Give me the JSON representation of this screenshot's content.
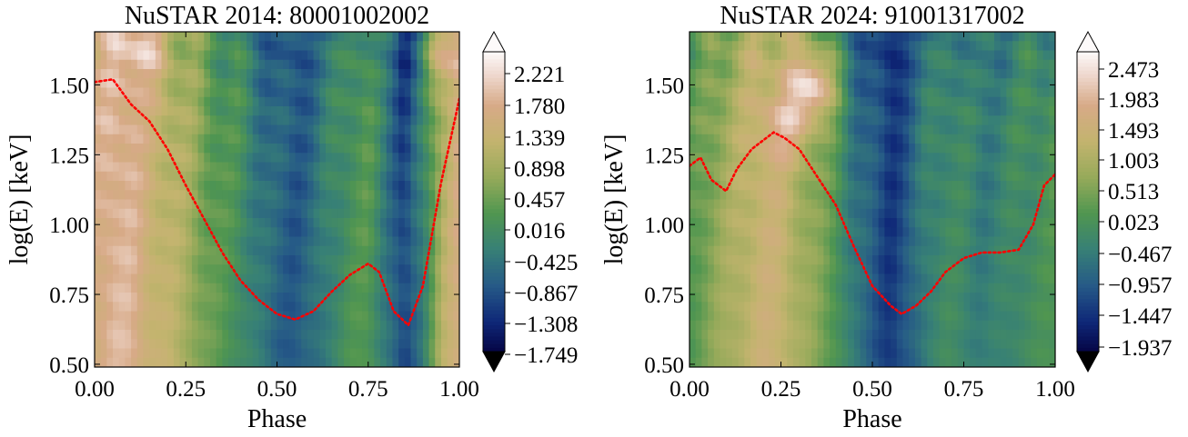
{
  "chart_data": [
    {
      "type": "heatmap",
      "title": "NuSTAR 2014: 80001002002",
      "xlabel": "Phase",
      "ylabel": "log(E) [keV]",
      "xlim": [
        0.0,
        1.0
      ],
      "ylim": [
        0.49,
        1.69
      ],
      "xticks": [
        "0.00",
        "0.25",
        "0.50",
        "0.75",
        "1.00"
      ],
      "yticks": [
        "0.50",
        "0.75",
        "1.00",
        "1.25",
        "1.50"
      ],
      "colormap": "gist_earth",
      "color_range": [
        -1.749,
        2.5
      ],
      "colorbar_ticks": [
        "2.221",
        "1.780",
        "1.339",
        "0.898",
        "0.457",
        "0.016",
        "−0.425",
        "−0.867",
        "−1.308",
        "−1.749"
      ],
      "colorbar_extend": "both",
      "column_profile": [
        {
          "phase": 0.0,
          "value": 1.6
        },
        {
          "phase": 0.05,
          "value": 1.9
        },
        {
          "phase": 0.1,
          "value": 1.8
        },
        {
          "phase": 0.15,
          "value": 1.4
        },
        {
          "phase": 0.2,
          "value": 1.2
        },
        {
          "phase": 0.25,
          "value": 0.9
        },
        {
          "phase": 0.3,
          "value": 0.5
        },
        {
          "phase": 0.35,
          "value": 0.2
        },
        {
          "phase": 0.4,
          "value": 0.0
        },
        {
          "phase": 0.45,
          "value": -0.4
        },
        {
          "phase": 0.5,
          "value": -0.7
        },
        {
          "phase": 0.55,
          "value": -0.8
        },
        {
          "phase": 0.6,
          "value": -0.6
        },
        {
          "phase": 0.65,
          "value": -0.2
        },
        {
          "phase": 0.7,
          "value": 0.1
        },
        {
          "phase": 0.75,
          "value": 0.2
        },
        {
          "phase": 0.8,
          "value": -0.4
        },
        {
          "phase": 0.85,
          "value": -1.1
        },
        {
          "phase": 0.9,
          "value": -0.3
        },
        {
          "phase": 0.95,
          "value": 1.0
        },
        {
          "phase": 1.0,
          "value": 1.6
        }
      ],
      "hotspots": [
        {
          "phase": 0.12,
          "logE": 1.64,
          "value": 2.3
        },
        {
          "phase": 0.99,
          "logE": 1.62,
          "value": 2.1
        }
      ],
      "overlay_line": {
        "style": "dotted",
        "color": "#ff0000",
        "points": [
          [
            0.0,
            1.51
          ],
          [
            0.05,
            1.52
          ],
          [
            0.1,
            1.43
          ],
          [
            0.15,
            1.37
          ],
          [
            0.2,
            1.27
          ],
          [
            0.25,
            1.14
          ],
          [
            0.3,
            1.02
          ],
          [
            0.35,
            0.9
          ],
          [
            0.4,
            0.8
          ],
          [
            0.45,
            0.73
          ],
          [
            0.5,
            0.68
          ],
          [
            0.55,
            0.66
          ],
          [
            0.6,
            0.69
          ],
          [
            0.65,
            0.76
          ],
          [
            0.7,
            0.82
          ],
          [
            0.75,
            0.86
          ],
          [
            0.78,
            0.83
          ],
          [
            0.82,
            0.69
          ],
          [
            0.86,
            0.64
          ],
          [
            0.9,
            0.78
          ],
          [
            0.95,
            1.15
          ],
          [
            1.0,
            1.45
          ]
        ]
      }
    },
    {
      "type": "heatmap",
      "title": "NuSTAR 2024: 91001317002",
      "xlabel": "Phase",
      "ylabel": "log(E) [keV]",
      "xlim": [
        0.0,
        1.0
      ],
      "ylim": [
        0.49,
        1.69
      ],
      "xticks": [
        "0.00",
        "0.25",
        "0.50",
        "0.75",
        "1.00"
      ],
      "yticks": [
        "0.50",
        "0.75",
        "1.00",
        "1.25",
        "1.50"
      ],
      "colormap": "gist_earth",
      "color_range": [
        -1.937,
        2.72
      ],
      "colorbar_ticks": [
        "2.473",
        "1.983",
        "1.493",
        "1.003",
        "0.513",
        "0.023",
        "−0.467",
        "−0.957",
        "−1.447",
        "−1.937"
      ],
      "colorbar_extend": "both",
      "column_profile": [
        {
          "phase": 0.0,
          "value": 0.2
        },
        {
          "phase": 0.05,
          "value": 0.6
        },
        {
          "phase": 0.1,
          "value": 0.9
        },
        {
          "phase": 0.15,
          "value": 1.2
        },
        {
          "phase": 0.2,
          "value": 1.5
        },
        {
          "phase": 0.25,
          "value": 1.4
        },
        {
          "phase": 0.3,
          "value": 1.0
        },
        {
          "phase": 0.35,
          "value": 0.6
        },
        {
          "phase": 0.4,
          "value": 0.2
        },
        {
          "phase": 0.45,
          "value": -0.5
        },
        {
          "phase": 0.5,
          "value": -0.9
        },
        {
          "phase": 0.55,
          "value": -1.3
        },
        {
          "phase": 0.6,
          "value": -0.9
        },
        {
          "phase": 0.65,
          "value": -0.3
        },
        {
          "phase": 0.7,
          "value": -0.1
        },
        {
          "phase": 0.75,
          "value": -0.2
        },
        {
          "phase": 0.8,
          "value": -0.4
        },
        {
          "phase": 0.85,
          "value": -0.3
        },
        {
          "phase": 0.9,
          "value": -0.1
        },
        {
          "phase": 0.95,
          "value": 0.0
        },
        {
          "phase": 1.0,
          "value": 0.1
        }
      ],
      "hotspots": [
        {
          "phase": 0.33,
          "logE": 1.5,
          "value": 2.5
        },
        {
          "phase": 0.26,
          "logE": 1.35,
          "value": 2.0
        }
      ],
      "overlay_line": {
        "style": "dotted",
        "color": "#ff0000",
        "points": [
          [
            0.0,
            1.21
          ],
          [
            0.03,
            1.24
          ],
          [
            0.06,
            1.16
          ],
          [
            0.1,
            1.12
          ],
          [
            0.13,
            1.2
          ],
          [
            0.17,
            1.27
          ],
          [
            0.2,
            1.3
          ],
          [
            0.23,
            1.33
          ],
          [
            0.26,
            1.31
          ],
          [
            0.3,
            1.27
          ],
          [
            0.35,
            1.17
          ],
          [
            0.4,
            1.07
          ],
          [
            0.45,
            0.92
          ],
          [
            0.5,
            0.78
          ],
          [
            0.55,
            0.71
          ],
          [
            0.58,
            0.68
          ],
          [
            0.62,
            0.71
          ],
          [
            0.66,
            0.76
          ],
          [
            0.7,
            0.83
          ],
          [
            0.75,
            0.88
          ],
          [
            0.8,
            0.9
          ],
          [
            0.85,
            0.9
          ],
          [
            0.9,
            0.91
          ],
          [
            0.94,
            1.0
          ],
          [
            0.97,
            1.14
          ],
          [
            1.0,
            1.18
          ]
        ]
      }
    }
  ]
}
